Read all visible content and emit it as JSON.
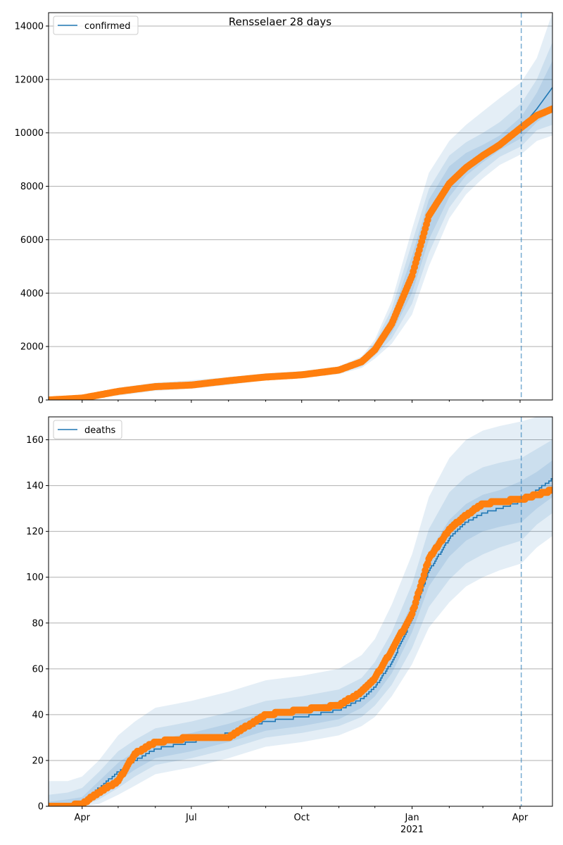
{
  "figure": {
    "title": "Rensselaer 28 days"
  },
  "colors": {
    "model_line": "#1f77b4",
    "observed_points": "#ff7f0e",
    "band": "#1f77b4",
    "grid": "#b0b0b0",
    "forecast_line": "#1f77b4"
  },
  "x_axis": {
    "tick_labels": [
      "Apr",
      "Jul",
      "Oct",
      "Jan",
      "Apr"
    ],
    "tick_dates": [
      "2020-04-01",
      "2020-07-01",
      "2020-10-01",
      "2021-01-01",
      "2021-04-01"
    ],
    "year_label": "2021",
    "range": [
      "2020-03-04",
      "2021-04-28"
    ]
  },
  "chart_data": [
    {
      "type": "line",
      "panel": "top",
      "legend": "confirmed",
      "legend_position": "top-left",
      "grid": "y",
      "ylim": [
        0,
        14500
      ],
      "yticks": [
        0,
        2000,
        4000,
        6000,
        8000,
        10000,
        12000,
        14000
      ],
      "forecast_start": "2021-04-02",
      "x": [
        "2020-03-04",
        "2020-04-01",
        "2020-05-01",
        "2020-06-01",
        "2020-07-01",
        "2020-08-01",
        "2020-09-01",
        "2020-10-01",
        "2020-11-01",
        "2020-11-20",
        "2020-12-01",
        "2020-12-15",
        "2021-01-01",
        "2021-01-15",
        "2021-02-01",
        "2021-02-15",
        "2021-03-01",
        "2021-03-15",
        "2021-04-02",
        "2021-04-15",
        "2021-04-28"
      ],
      "series": [
        {
          "name": "confirmed",
          "kind": "model",
          "values": [
            0,
            60,
            300,
            490,
            570,
            700,
            850,
            930,
            1100,
            1400,
            1900,
            2800,
            4700,
            6800,
            8200,
            8800,
            9200,
            9600,
            10200,
            10900,
            11700
          ]
        },
        {
          "kind": "observed",
          "values": [
            0,
            70,
            320,
            500,
            560,
            720,
            860,
            940,
            1120,
            1430,
            1880,
            2850,
            4650,
            6900,
            8100,
            8700,
            9150,
            9550,
            10200,
            10650,
            10900
          ]
        }
      ],
      "bands": [
        {
          "lower": [
            0,
            40,
            240,
            420,
            500,
            640,
            800,
            880,
            1050,
            1320,
            1750,
            2500,
            4000,
            6000,
            7600,
            8400,
            8900,
            9350,
            9800,
            10400,
            10800
          ],
          "upper": [
            0,
            90,
            370,
            560,
            640,
            770,
            910,
            990,
            1170,
            1500,
            2050,
            3150,
            5400,
            7500,
            8750,
            9250,
            9550,
            9900,
            10600,
            11500,
            12700
          ]
        },
        {
          "lower": [
            0,
            25,
            200,
            380,
            460,
            600,
            770,
            850,
            1010,
            1260,
            1650,
            2300,
            3600,
            5500,
            7200,
            8050,
            8600,
            9100,
            9500,
            10100,
            10300
          ],
          "upper": [
            0,
            110,
            410,
            600,
            690,
            810,
            950,
            1030,
            1210,
            1560,
            2150,
            3400,
            5900,
            7900,
            9150,
            9650,
            10000,
            10400,
            11100,
            12000,
            13400
          ]
        },
        {
          "lower": [
            0,
            10,
            160,
            340,
            420,
            560,
            740,
            820,
            970,
            1200,
            1550,
            2100,
            3200,
            5000,
            6800,
            7700,
            8300,
            8800,
            9200,
            9700,
            9900
          ],
          "upper": [
            0,
            140,
            460,
            650,
            740,
            860,
            1000,
            1080,
            1260,
            1630,
            2260,
            3700,
            6400,
            8500,
            9700,
            10300,
            10800,
            11300,
            11900,
            12800,
            14500
          ]
        }
      ]
    },
    {
      "type": "line",
      "panel": "bottom",
      "legend": "deaths",
      "legend_position": "top-left",
      "grid": "y",
      "ylim": [
        0,
        170
      ],
      "yticks": [
        0,
        20,
        40,
        60,
        80,
        100,
        120,
        140,
        160
      ],
      "forecast_start": "2021-04-02",
      "x": [
        "2020-03-04",
        "2020-03-20",
        "2020-04-01",
        "2020-04-15",
        "2020-05-01",
        "2020-05-15",
        "2020-06-01",
        "2020-07-01",
        "2020-08-01",
        "2020-09-01",
        "2020-10-01",
        "2020-11-01",
        "2020-11-20",
        "2020-12-01",
        "2020-12-15",
        "2021-01-01",
        "2021-01-15",
        "2021-02-01",
        "2021-02-15",
        "2021-03-01",
        "2021-03-15",
        "2021-04-02",
        "2021-04-15",
        "2021-04-28"
      ],
      "series": [
        {
          "name": "deaths",
          "kind": "model",
          "values": [
            0,
            1,
            2,
            8,
            15,
            20,
            25,
            28,
            32,
            37,
            39,
            42,
            47,
            52,
            63,
            82,
            103,
            117,
            124,
            128,
            130,
            133,
            138,
            143
          ]
        },
        {
          "kind": "observed",
          "values": [
            0,
            0,
            1,
            6,
            11,
            23,
            28,
            30,
            30,
            40,
            42,
            44,
            50,
            56,
            68,
            84,
            108,
            121,
            127,
            132,
            133,
            134,
            136,
            138
          ]
        }
      ],
      "bands": [
        {
          "lower": [
            0,
            0,
            1,
            5,
            11,
            16,
            21,
            24,
            28,
            33,
            35,
            38,
            43,
            48,
            58,
            76,
            96,
            109,
            116,
            120,
            122,
            124,
            130,
            135
          ],
          "upper": [
            2,
            3,
            4,
            11,
            19,
            24,
            29,
            32,
            36,
            41,
            43,
            46,
            51,
            57,
            69,
            89,
            111,
            125,
            132,
            136,
            138,
            142,
            146,
            151
          ]
        },
        {
          "lower": [
            0,
            0,
            0,
            3,
            8,
            13,
            18,
            21,
            25,
            30,
            32,
            35,
            39,
            44,
            53,
            69,
            87,
            99,
            106,
            110,
            113,
            116,
            123,
            128
          ],
          "upper": [
            5,
            6,
            8,
            15,
            24,
            29,
            34,
            37,
            41,
            46,
            48,
            51,
            56,
            63,
            76,
            97,
            121,
            137,
            144,
            148,
            150,
            152,
            156,
            160
          ]
        },
        {
          "lower": [
            0,
            0,
            0,
            1,
            5,
            9,
            14,
            17,
            21,
            26,
            28,
            31,
            35,
            39,
            48,
            62,
            78,
            89,
            96,
            100,
            103,
            106,
            113,
            118
          ],
          "upper": [
            11,
            11,
            13,
            20,
            31,
            37,
            43,
            46,
            50,
            55,
            57,
            60,
            66,
            73,
            88,
            110,
            135,
            152,
            160,
            164,
            166,
            168,
            170,
            170
          ]
        }
      ]
    }
  ]
}
